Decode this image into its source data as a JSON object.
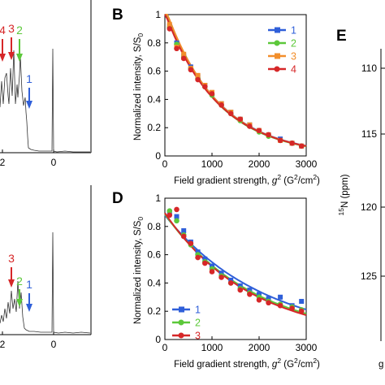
{
  "figure": {
    "panel_letters": [
      "B",
      "D",
      "E"
    ]
  },
  "chart_data": [
    {
      "panel": "top-left spectrum (cropped)",
      "type": "line",
      "x_ticks": [
        "2",
        "0"
      ],
      "peak_labels": [
        {
          "text": "4",
          "color": "#d62728"
        },
        {
          "text": "3",
          "color": "#d62728"
        },
        {
          "text": "2",
          "color": "#5cc83a"
        },
        {
          "text": "1",
          "color": "#2f5fd9"
        }
      ]
    },
    {
      "panel": "B",
      "type": "scatter",
      "title": "",
      "xlabel_main": "Field gradient strength, ",
      "xlabel_var": "g",
      "xlabel_sup": "2",
      "xlabel_unit": " (G",
      "xlabel_unit_sup": "2",
      "xlabel_unit_end": "/cm",
      "xlabel_unit_sup2": "2",
      "xlabel_close": ")",
      "ylabel": "Normalized intensity, S/S",
      "ylabel_sub": "0",
      "xlim": [
        0,
        3000
      ],
      "ylim": [
        0,
        1
      ],
      "x_ticks": [
        0,
        1000,
        2000,
        3000
      ],
      "y_ticks": [
        0,
        0.2,
        0.4,
        0.6,
        0.8,
        1
      ],
      "legend_position": "top-right",
      "series": [
        {
          "name": "1",
          "color": "#2f5fd9",
          "marker": "square",
          "x": [
            100,
            250,
            400,
            550,
            700,
            850,
            1000,
            1200,
            1400,
            1600,
            1800,
            2000,
            2200,
            2450,
            2700,
            2900
          ],
          "y": [
            0.92,
            0.8,
            0.71,
            0.63,
            0.56,
            0.5,
            0.44,
            0.37,
            0.31,
            0.26,
            0.22,
            0.18,
            0.15,
            0.12,
            0.09,
            0.07
          ]
        },
        {
          "name": "2",
          "color": "#5cc83a",
          "marker": "circle",
          "x": [
            100,
            250,
            400,
            550,
            700,
            850,
            1000,
            1200,
            1400,
            1600,
            1800,
            2000,
            2200,
            2450,
            2700,
            2900
          ],
          "y": [
            0.91,
            0.79,
            0.7,
            0.62,
            0.55,
            0.49,
            0.43,
            0.36,
            0.3,
            0.25,
            0.21,
            0.17,
            0.14,
            0.11,
            0.09,
            0.07
          ]
        },
        {
          "name": "3",
          "color": "#f28e2b",
          "marker": "square",
          "x": [
            100,
            250,
            400,
            550,
            700,
            850,
            1000,
            1200,
            1400,
            1600,
            1800,
            2000,
            2200,
            2450,
            2700,
            2900
          ],
          "y": [
            0.93,
            0.77,
            0.72,
            0.62,
            0.57,
            0.5,
            0.45,
            0.37,
            0.31,
            0.26,
            0.22,
            0.18,
            0.15,
            0.11,
            0.09,
            0.07
          ]
        },
        {
          "name": "4",
          "color": "#d62728",
          "marker": "circle",
          "x": [
            100,
            250,
            400,
            550,
            700,
            850,
            1000,
            1200,
            1400,
            1600,
            1800,
            2000,
            2200,
            2450,
            2700,
            2900
          ],
          "y": [
            0.9,
            0.76,
            0.69,
            0.61,
            0.54,
            0.49,
            0.44,
            0.36,
            0.3,
            0.26,
            0.21,
            0.18,
            0.15,
            0.11,
            0.09,
            0.07
          ]
        }
      ]
    },
    {
      "panel": "D",
      "type": "scatter",
      "title": "",
      "xlabel_main": "Field gradient strength, ",
      "xlabel_var": "g",
      "xlabel_sup": "2",
      "xlabel_unit": " (G",
      "xlabel_unit_sup": "2",
      "xlabel_unit_end": "/cm",
      "xlabel_unit_sup2": "2",
      "xlabel_close": ")",
      "ylabel": "Normalized intensity, S/S",
      "ylabel_sub": "0",
      "xlim": [
        0,
        3000
      ],
      "ylim": [
        0,
        1
      ],
      "x_ticks": [
        0,
        1000,
        2000,
        3000
      ],
      "y_ticks": [
        0,
        0.2,
        0.4,
        0.6,
        0.8,
        1
      ],
      "legend_position": "bottom-left",
      "series": [
        {
          "name": "1",
          "color": "#2f5fd9",
          "marker": "square",
          "x": [
            100,
            250,
            400,
            550,
            700,
            850,
            1000,
            1200,
            1400,
            1600,
            1800,
            2000,
            2200,
            2450,
            2700,
            2900
          ],
          "y": [
            0.9,
            0.87,
            0.77,
            0.69,
            0.62,
            0.57,
            0.52,
            0.47,
            0.42,
            0.38,
            0.35,
            0.32,
            0.29,
            0.3,
            0.24,
            0.27
          ]
        },
        {
          "name": "2",
          "color": "#5cc83a",
          "marker": "circle",
          "x": [
            100,
            250,
            400,
            550,
            700,
            850,
            1000,
            1200,
            1400,
            1600,
            1800,
            2000,
            2200,
            2450,
            2700,
            2900
          ],
          "y": [
            0.91,
            0.84,
            0.74,
            0.67,
            0.6,
            0.55,
            0.5,
            0.45,
            0.4,
            0.36,
            0.33,
            0.3,
            0.27,
            0.25,
            0.23,
            0.21
          ]
        },
        {
          "name": "3",
          "color": "#d62728",
          "marker": "circle",
          "x": [
            100,
            250,
            400,
            550,
            700,
            850,
            1000,
            1200,
            1400,
            1600,
            1800,
            2000,
            2200,
            2450,
            2700,
            2900
          ],
          "y": [
            0.88,
            0.92,
            0.73,
            0.68,
            0.58,
            0.54,
            0.48,
            0.44,
            0.4,
            0.35,
            0.32,
            0.28,
            0.26,
            0.24,
            0.22,
            0.2
          ]
        }
      ]
    },
    {
      "panel": "bottom-left spectrum (cropped)",
      "type": "line",
      "x_ticks": [
        "2",
        "0"
      ],
      "peak_labels": [
        {
          "text": "3",
          "color": "#d62728"
        },
        {
          "text": "2",
          "color": "#5cc83a"
        },
        {
          "text": "1",
          "color": "#2f5fd9"
        }
      ]
    },
    {
      "panel": "E",
      "type": "scatter",
      "ylabel_sup": "15",
      "ylabel": "N (ppm)",
      "y_ticks": [
        "110",
        "115",
        "120",
        "125"
      ],
      "bottom_cropped_text": "g"
    }
  ]
}
